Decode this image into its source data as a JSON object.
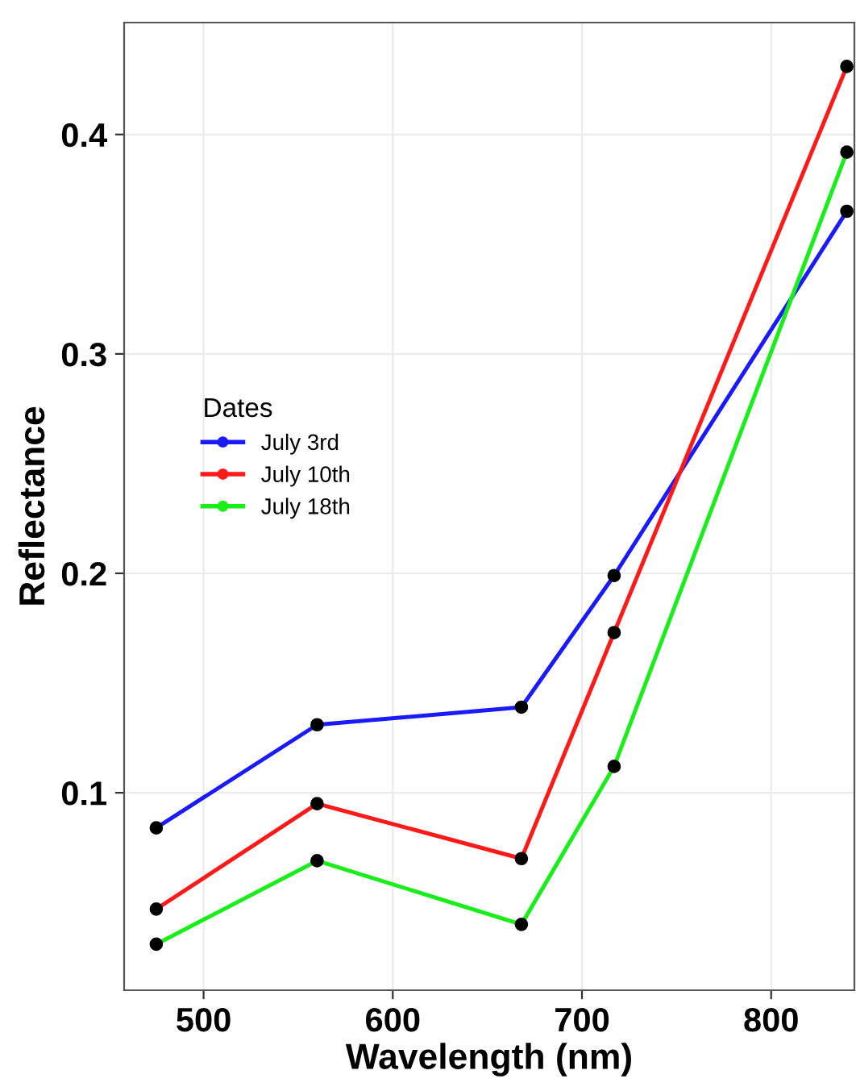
{
  "chart_data": {
    "type": "line",
    "xlabel": "Wavelength (nm)",
    "ylabel": "Reflectance",
    "legend_title": "Dates",
    "x": [
      475,
      560,
      668,
      717,
      840
    ],
    "series": [
      {
        "name": "July 3rd",
        "color": "#1a1aff",
        "values": [
          0.084,
          0.131,
          0.139,
          0.199,
          0.365
        ]
      },
      {
        "name": "July 10th",
        "color": "#ff1a1a",
        "values": [
          0.047,
          0.095,
          0.07,
          0.173,
          0.431
        ]
      },
      {
        "name": "July 18th",
        "color": "#1aee1a",
        "values": [
          0.031,
          0.069,
          0.04,
          0.112,
          0.392
        ]
      }
    ],
    "xlim": [
      458,
      844
    ],
    "ylim": [
      0.01,
      0.451
    ],
    "xticks": [
      500,
      600,
      700,
      800
    ],
    "yticks": [
      0.1,
      0.2,
      0.3,
      0.4
    ],
    "grid": true,
    "legend": "left",
    "marker": "circle",
    "line_style": "solid"
  }
}
